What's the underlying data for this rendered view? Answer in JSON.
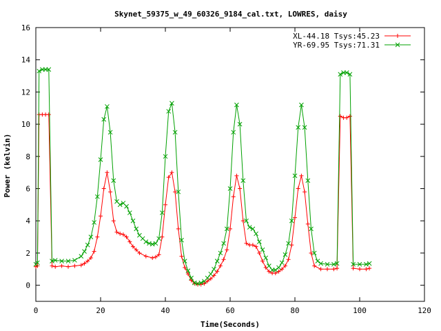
{
  "chart_data": {
    "type": "line",
    "title": "Skynet_59375_w_49_60326_9184_cal.txt, LOWRES, daisy",
    "xlabel": "Time(Seconds)",
    "ylabel": "Power (kelvin)",
    "xlim": [
      0,
      120
    ],
    "ylim": [
      -1,
      16
    ],
    "xticks": [
      "0",
      "20",
      "40",
      "60",
      "80",
      "100",
      "120"
    ],
    "yticks": [
      "0",
      "2",
      "4",
      "6",
      "8",
      "10",
      "12",
      "14",
      "16"
    ],
    "xtick_values": [
      0,
      20,
      40,
      60,
      80,
      100,
      120
    ],
    "ytick_values": [
      0,
      2,
      4,
      6,
      8,
      10,
      12,
      14,
      16
    ],
    "grid": false,
    "legend_position": "top-right",
    "colors": {
      "xl": "#ff0000",
      "yr": "#00a000",
      "cal_xl": "#a05000"
    },
    "series": [
      {
        "name": "XL-44.18 Tsys:45.23",
        "marker": "plus",
        "points": [
          [
            0,
            1.15
          ],
          [
            0.5,
            1.2
          ],
          [
            1,
            10.6
          ],
          [
            2,
            10.6
          ],
          [
            3,
            10.6
          ],
          [
            4,
            10.6
          ],
          [
            5,
            1.2
          ],
          [
            6,
            1.15
          ],
          [
            8,
            1.2
          ],
          [
            10,
            1.15
          ],
          [
            12,
            1.2
          ],
          [
            14,
            1.25
          ],
          [
            15,
            1.35
          ],
          [
            16,
            1.5
          ],
          [
            17,
            1.7
          ],
          [
            18,
            2.1
          ],
          [
            19,
            3.0
          ],
          [
            20,
            4.3
          ],
          [
            21,
            6.0
          ],
          [
            22,
            7.0
          ],
          [
            23,
            5.8
          ],
          [
            24,
            4.0
          ],
          [
            25,
            3.3
          ],
          [
            26,
            3.2
          ],
          [
            27,
            3.15
          ],
          [
            28,
            3.0
          ],
          [
            29,
            2.7
          ],
          [
            30,
            2.4
          ],
          [
            31,
            2.2
          ],
          [
            32,
            2.0
          ],
          [
            34,
            1.8
          ],
          [
            36,
            1.7
          ],
          [
            37,
            1.75
          ],
          [
            38,
            1.9
          ],
          [
            39,
            3.0
          ],
          [
            40,
            5.0
          ],
          [
            41,
            6.7
          ],
          [
            42,
            7.0
          ],
          [
            43,
            5.8
          ],
          [
            44,
            3.5
          ],
          [
            45,
            1.8
          ],
          [
            46,
            1.1
          ],
          [
            47,
            0.7
          ],
          [
            48,
            0.3
          ],
          [
            49,
            0.1
          ],
          [
            50,
            0.05
          ],
          [
            51,
            0.05
          ],
          [
            52,
            0.1
          ],
          [
            53,
            0.25
          ],
          [
            54,
            0.4
          ],
          [
            55,
            0.6
          ],
          [
            56,
            0.85
          ],
          [
            57,
            1.2
          ],
          [
            58,
            1.6
          ],
          [
            59,
            2.2
          ],
          [
            60,
            3.5
          ],
          [
            61,
            5.5
          ],
          [
            62,
            6.8
          ],
          [
            63,
            6.0
          ],
          [
            64,
            4.0
          ],
          [
            65,
            2.6
          ],
          [
            66,
            2.5
          ],
          [
            67,
            2.5
          ],
          [
            68,
            2.4
          ],
          [
            69,
            2.0
          ],
          [
            70,
            1.5
          ],
          [
            71,
            1.1
          ],
          [
            72,
            0.85
          ],
          [
            73,
            0.75
          ],
          [
            74,
            0.75
          ],
          [
            75,
            0.85
          ],
          [
            76,
            1.0
          ],
          [
            77,
            1.2
          ],
          [
            78,
            1.6
          ],
          [
            79,
            2.5
          ],
          [
            80,
            4.2
          ],
          [
            81,
            6.0
          ],
          [
            82,
            6.8
          ],
          [
            83,
            5.8
          ],
          [
            84,
            3.8
          ],
          [
            85,
            2.0
          ],
          [
            86,
            1.2
          ],
          [
            88,
            1.0
          ],
          [
            90,
            1.0
          ],
          [
            92,
            1.0
          ],
          [
            93,
            1.05
          ],
          [
            94,
            10.5
          ],
          [
            95,
            10.4
          ],
          [
            96,
            10.4
          ],
          [
            97,
            10.5
          ],
          [
            98,
            1.05
          ],
          [
            100,
            1.0
          ],
          [
            102,
            1.0
          ],
          [
            103,
            1.05
          ]
        ]
      },
      {
        "name": "YR-69.95 Tsys:71.31",
        "marker": "cross",
        "points": [
          [
            0,
            1.3
          ],
          [
            0.5,
            1.4
          ],
          [
            1,
            13.3
          ],
          [
            2,
            13.4
          ],
          [
            3,
            13.4
          ],
          [
            4,
            13.4
          ],
          [
            5,
            1.5
          ],
          [
            6,
            1.55
          ],
          [
            8,
            1.5
          ],
          [
            10,
            1.5
          ],
          [
            12,
            1.55
          ],
          [
            14,
            1.8
          ],
          [
            15,
            2.1
          ],
          [
            16,
            2.5
          ],
          [
            17,
            3.0
          ],
          [
            18,
            3.9
          ],
          [
            19,
            5.5
          ],
          [
            20,
            7.8
          ],
          [
            21,
            10.3
          ],
          [
            22,
            11.1
          ],
          [
            23,
            9.5
          ],
          [
            24,
            6.5
          ],
          [
            25,
            5.2
          ],
          [
            26,
            5.0
          ],
          [
            27,
            5.1
          ],
          [
            28,
            4.9
          ],
          [
            29,
            4.5
          ],
          [
            30,
            4.0
          ],
          [
            31,
            3.5
          ],
          [
            32,
            3.1
          ],
          [
            33,
            2.9
          ],
          [
            34,
            2.7
          ],
          [
            35,
            2.6
          ],
          [
            36,
            2.55
          ],
          [
            37,
            2.6
          ],
          [
            38,
            2.9
          ],
          [
            39,
            4.5
          ],
          [
            40,
            8.0
          ],
          [
            41,
            10.8
          ],
          [
            42,
            11.3
          ],
          [
            43,
            9.5
          ],
          [
            44,
            5.8
          ],
          [
            45,
            2.8
          ],
          [
            46,
            1.5
          ],
          [
            47,
            0.9
          ],
          [
            48,
            0.45
          ],
          [
            49,
            0.15
          ],
          [
            50,
            0.1
          ],
          [
            51,
            0.15
          ],
          [
            52,
            0.25
          ],
          [
            53,
            0.45
          ],
          [
            54,
            0.7
          ],
          [
            55,
            1.0
          ],
          [
            56,
            1.5
          ],
          [
            57,
            2.0
          ],
          [
            58,
            2.6
          ],
          [
            59,
            3.5
          ],
          [
            60,
            6.0
          ],
          [
            61,
            9.5
          ],
          [
            62,
            11.2
          ],
          [
            63,
            10.0
          ],
          [
            64,
            6.5
          ],
          [
            65,
            4.0
          ],
          [
            66,
            3.6
          ],
          [
            67,
            3.5
          ],
          [
            68,
            3.2
          ],
          [
            69,
            2.7
          ],
          [
            70,
            2.2
          ],
          [
            71,
            1.7
          ],
          [
            72,
            1.2
          ],
          [
            73,
            0.95
          ],
          [
            74,
            0.95
          ],
          [
            75,
            1.1
          ],
          [
            76,
            1.4
          ],
          [
            77,
            1.9
          ],
          [
            78,
            2.6
          ],
          [
            79,
            4.0
          ],
          [
            80,
            6.8
          ],
          [
            81,
            9.8
          ],
          [
            82,
            11.2
          ],
          [
            83,
            9.8
          ],
          [
            84,
            6.5
          ],
          [
            85,
            3.5
          ],
          [
            86,
            2.0
          ],
          [
            87,
            1.5
          ],
          [
            88,
            1.35
          ],
          [
            90,
            1.3
          ],
          [
            92,
            1.3
          ],
          [
            93,
            1.35
          ],
          [
            94,
            13.1
          ],
          [
            95,
            13.2
          ],
          [
            96,
            13.2
          ],
          [
            97,
            13.1
          ],
          [
            98,
            1.3
          ],
          [
            100,
            1.3
          ],
          [
            102,
            1.3
          ],
          [
            103,
            1.35
          ]
        ]
      }
    ]
  }
}
